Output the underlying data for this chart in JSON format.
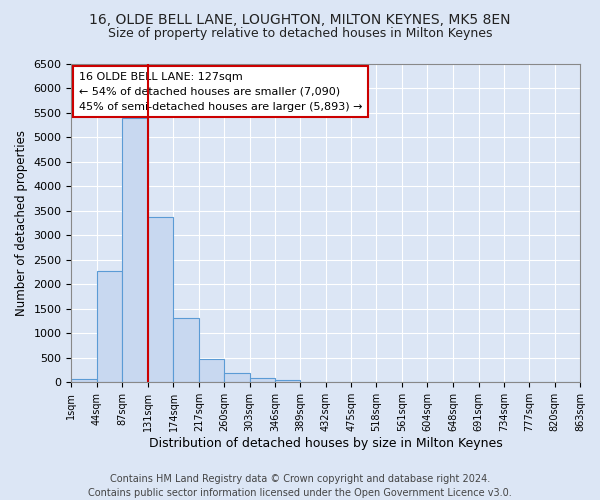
{
  "title1": "16, OLDE BELL LANE, LOUGHTON, MILTON KEYNES, MK5 8EN",
  "title2": "Size of property relative to detached houses in Milton Keynes",
  "xlabel": "Distribution of detached houses by size in Milton Keynes",
  "ylabel": "Number of detached properties",
  "bar_values": [
    70,
    2280,
    5390,
    3370,
    1310,
    480,
    185,
    90,
    55,
    0,
    0,
    0,
    0,
    0,
    0,
    0,
    0,
    0,
    0,
    0
  ],
  "bin_edges": [
    1,
    44,
    87,
    131,
    174,
    217,
    260,
    303,
    346,
    389,
    432,
    475,
    518,
    561,
    604,
    648,
    691,
    734,
    777,
    820,
    863
  ],
  "tick_labels": [
    "1sqm",
    "44sqm",
    "87sqm",
    "131sqm",
    "174sqm",
    "217sqm",
    "260sqm",
    "303sqm",
    "346sqm",
    "389sqm",
    "432sqm",
    "475sqm",
    "518sqm",
    "561sqm",
    "604sqm",
    "648sqm",
    "691sqm",
    "734sqm",
    "777sqm",
    "820sqm",
    "863sqm"
  ],
  "vline_x": 131,
  "annotation_text": "16 OLDE BELL LANE: 127sqm\n← 54% of detached houses are smaller (7,090)\n45% of semi-detached houses are larger (5,893) →",
  "annotation_box_color": "#ffffff",
  "annotation_box_edge": "#cc0000",
  "bar_color": "#c8d8f0",
  "bar_edge_color": "#5b9bd5",
  "vline_color": "#cc0000",
  "ylim": [
    0,
    6500
  ],
  "yticks": [
    0,
    500,
    1000,
    1500,
    2000,
    2500,
    3000,
    3500,
    4000,
    4500,
    5000,
    5500,
    6000,
    6500
  ],
  "bg_color": "#dce6f5",
  "grid_color": "#ffffff",
  "footer_text": "Contains HM Land Registry data © Crown copyright and database right 2024.\nContains public sector information licensed under the Open Government Licence v3.0."
}
